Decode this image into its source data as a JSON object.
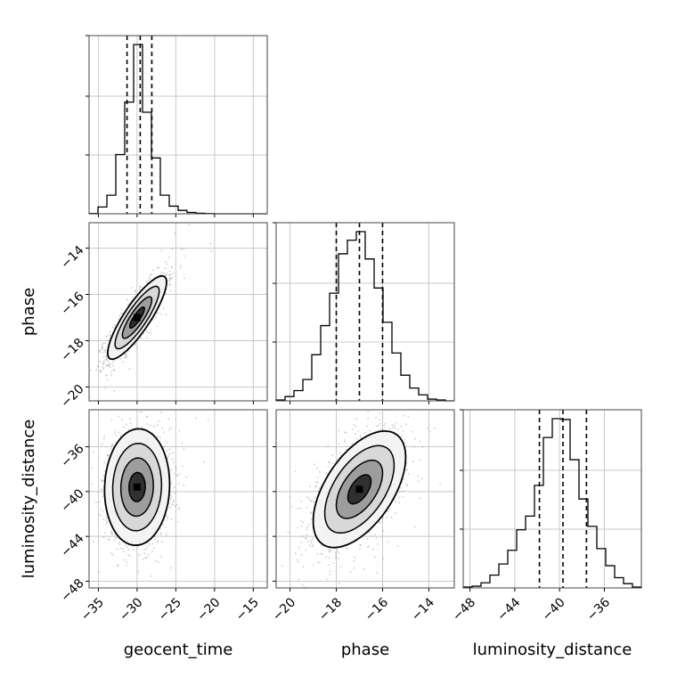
{
  "chart_data": {
    "type": "corner",
    "parameters": [
      "geocent_time",
      "phase",
      "luminosity_distance"
    ],
    "axis_labels": {
      "x": [
        "geocent_time",
        "phase",
        "luminosity_distance"
      ],
      "y": [
        "",
        "phase",
        "luminosity_distance"
      ]
    },
    "ranges": {
      "geocent_time": [
        -36.2,
        -13.2
      ],
      "phase": [
        -20.6,
        -12.9
      ],
      "luminosity_distance": [
        -48.6,
        -32.7
      ]
    },
    "ticks": {
      "geocent_time": [
        -35,
        -30,
        -25,
        -20,
        -15
      ],
      "phase": [
        -20,
        -18,
        -16,
        -14
      ],
      "luminosity_distance": [
        -48,
        -44,
        -40,
        -36
      ]
    },
    "tick_labels": {
      "geocent_time": [
        "−35",
        "−30",
        "−25",
        "−20",
        "−15"
      ],
      "phase": [
        "−20",
        "−18",
        "−16",
        "−14"
      ],
      "luminosity_distance": [
        "−48",
        "−44",
        "−40",
        "−36"
      ]
    },
    "quantile_lines": {
      "geocent_time": [
        -31.3,
        -29.6,
        -28.1
      ],
      "phase": [
        -18.0,
        -17.0,
        -16.0
      ],
      "luminosity_distance": [
        -41.8,
        -39.7,
        -37.6
      ]
    },
    "histograms": {
      "geocent_time": {
        "edges": [
          -36.2,
          -35.05,
          -33.9,
          -32.75,
          -31.6,
          -30.45,
          -29.3,
          -28.15,
          -27.0,
          -25.85,
          -24.7,
          -23.55,
          -22.4,
          -21.25,
          -20.1,
          -18.95,
          -17.8,
          -16.65,
          -15.5,
          -14.35,
          -13.2
        ],
        "counts": [
          2,
          40,
          110,
          350,
          660,
          1000,
          600,
          330,
          110,
          45,
          20,
          8,
          3,
          1,
          0,
          0,
          0,
          0,
          0,
          0
        ]
      },
      "phase": {
        "edges": [
          -20.6,
          -20.215,
          -19.83,
          -19.445,
          -19.06,
          -18.675,
          -18.29,
          -17.905,
          -17.52,
          -17.135,
          -16.75,
          -16.365,
          -15.98,
          -15.595,
          -15.21,
          -14.825,
          -14.44,
          -14.055,
          -13.67,
          -13.285,
          -12.9
        ],
        "counts": [
          5,
          25,
          60,
          125,
          270,
          440,
          630,
          860,
          940,
          990,
          830,
          660,
          460,
          280,
          150,
          75,
          35,
          10,
          5,
          0
        ]
      },
      "luminosity_distance": {
        "edges": [
          -48.6,
          -47.805,
          -47.01,
          -46.215,
          -45.42,
          -44.625,
          -43.83,
          -43.035,
          -42.24,
          -41.445,
          -40.65,
          -39.855,
          -39.06,
          -38.265,
          -37.47,
          -36.675,
          -35.88,
          -35.085,
          -34.29,
          -33.495,
          -32.7
        ],
        "counts": [
          5,
          10,
          30,
          75,
          140,
          220,
          340,
          420,
          600,
          880,
          990,
          985,
          750,
          520,
          360,
          230,
          130,
          60,
          25,
          5
        ]
      }
    },
    "joint": [
      {
        "x": "geocent_time",
        "y": "phase",
        "center": [
          -30.0,
          -17.0
        ],
        "sd": [
          1.9,
          0.9
        ],
        "rho": 0.85,
        "contour_sigma": [
          0.5,
          1.0,
          1.5,
          2.0
        ]
      },
      {
        "x": "geocent_time",
        "y": "luminosity_distance",
        "center": [
          -30.0,
          -39.6
        ],
        "sd": [
          2.1,
          2.6
        ],
        "rho": 0.05,
        "contour_sigma": [
          0.5,
          1.0,
          1.5,
          2.0
        ]
      },
      {
        "x": "phase",
        "y": "luminosity_distance",
        "center": [
          -17.0,
          -39.8
        ],
        "sd": [
          1.0,
          2.6
        ],
        "rho": 0.55,
        "contour_sigma": [
          0.5,
          1.0,
          1.5,
          2.0
        ]
      }
    ],
    "grid": true
  }
}
